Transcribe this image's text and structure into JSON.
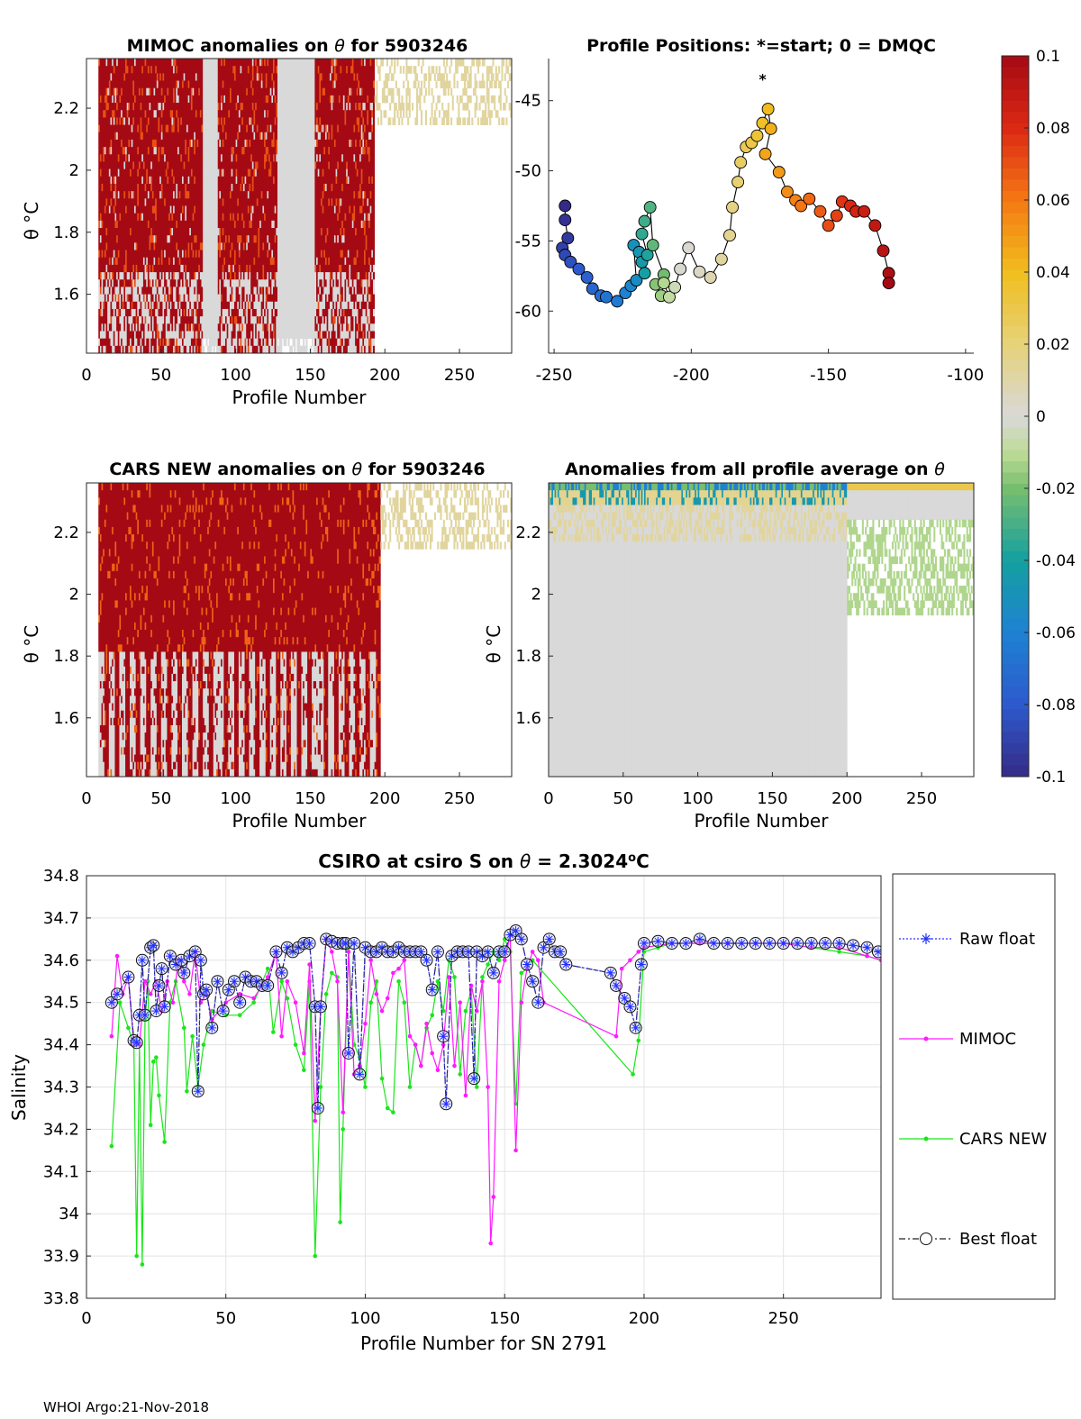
{
  "footer": "WHOI Argo:21-Nov-2018",
  "symbols": {
    "theta": "θ",
    "degC": "°C"
  },
  "panels": {
    "mimoc": {
      "title_pre": "MIMOC anomalies on ",
      "title_post": " for 5903246",
      "xlabel": "Profile Number",
      "ylabel": "θ °C",
      "xticks": [
        0,
        50,
        100,
        150,
        200,
        250
      ],
      "yticks": [
        1.6,
        1.8,
        2.0,
        2.2
      ],
      "xlim": [
        0,
        285
      ],
      "ylim": [
        1.41,
        2.36
      ]
    },
    "positions": {
      "title": "Profile Positions: *=start; 0 = DMQC",
      "xticks": [
        -250,
        -200,
        -150,
        -100
      ],
      "yticks": [
        -45,
        -50,
        -55,
        -60
      ],
      "xlim": [
        -252,
        -97
      ],
      "ylim": [
        -63,
        -42
      ]
    },
    "cars": {
      "title_pre": "CARS NEW anomalies on ",
      "title_post": " for 5903246",
      "xlabel": "Profile Number",
      "ylabel": "θ °C",
      "xticks": [
        0,
        50,
        100,
        150,
        200,
        250
      ],
      "yticks": [
        1.6,
        1.8,
        2.0,
        2.2
      ],
      "xlim": [
        0,
        285
      ],
      "ylim": [
        1.41,
        2.36
      ]
    },
    "avg": {
      "title_pre": "Anomalies from all profile average on ",
      "xlabel": "Profile Number",
      "ylabel": "θ °C",
      "xticks": [
        0,
        50,
        100,
        150,
        200,
        250
      ],
      "yticks": [
        1.6,
        1.8,
        2.0,
        2.2
      ],
      "xlim": [
        0,
        285
      ],
      "ylim": [
        1.41,
        2.36
      ]
    }
  },
  "colorbar": {
    "ticks": [
      "0.1",
      "0.08",
      "0.06",
      "0.04",
      "0.02",
      "0",
      "-0.02",
      "-0.04",
      "-0.06",
      "-0.08",
      "-0.1"
    ],
    "range": [
      -0.1,
      0.1
    ]
  },
  "chart_data": [
    {
      "type": "heatmap",
      "title": "MIMOC anomalies on θ for 5903246",
      "xlabel": "Profile Number",
      "ylabel": "θ °C",
      "xlim": [
        0,
        285
      ],
      "ylim": [
        1.41,
        2.36
      ],
      "data_columns": [
        {
          "x0": 8,
          "x1": 78,
          "value": 0.1
        },
        {
          "x0": 78,
          "x1": 88,
          "value": 0.0
        },
        {
          "x0": 88,
          "x1": 128,
          "value": 0.1
        },
        {
          "x0": 128,
          "x1": 153,
          "value": 0.0
        },
        {
          "x0": 153,
          "x1": 193,
          "value": 0.1
        },
        {
          "x0": 193,
          "x1": 285,
          "value": 0.01
        }
      ]
    },
    {
      "type": "scatter",
      "title": "Profile Positions: *=start; 0 = DMQC",
      "xlim": [
        -252,
        -97
      ],
      "ylim": [
        -63,
        -42
      ],
      "x": [
        -246,
        -246,
        -245,
        -247,
        -246,
        -244,
        -241,
        -238,
        -236,
        -233,
        -231,
        -227,
        -224,
        -222,
        -220,
        -221,
        -219,
        -218,
        -217,
        -216,
        -218,
        -217,
        -215,
        -214,
        -210,
        -213,
        -211,
        -210,
        -208,
        -206,
        -204,
        -201,
        -197,
        -193,
        -189,
        -186,
        -185,
        -183,
        -182,
        -180,
        -178,
        -176,
        -174,
        -172,
        -171,
        -173,
        -168,
        -165,
        -162,
        -160,
        -157,
        -153,
        -150,
        -147,
        -145,
        -142,
        -140,
        -137,
        -133,
        -130,
        -128,
        -128
      ],
      "y": [
        -52.5,
        -53.5,
        -54.8,
        -55.5,
        -56.0,
        -56.5,
        -57.0,
        -57.6,
        -58.4,
        -58.9,
        -59.0,
        -59.3,
        -58.7,
        -58.2,
        -57.8,
        -55.3,
        -55.8,
        -56.5,
        -57.3,
        -56.0,
        -54.5,
        -53.6,
        -52.6,
        -55.3,
        -57.4,
        -58.1,
        -58.9,
        -58.0,
        -59.0,
        -58.3,
        -57.0,
        -55.5,
        -57.2,
        -57.6,
        -56.3,
        -54.6,
        -52.6,
        -50.8,
        -49.4,
        -48.3,
        -48.0,
        -47.5,
        -46.6,
        -45.6,
        -47.0,
        -48.8,
        -50.1,
        -51.5,
        -52.1,
        -52.5,
        -52.0,
        -52.9,
        -53.9,
        -53.2,
        -52.2,
        -52.5,
        -52.9,
        -52.9,
        -53.9,
        -55.7,
        -57.3,
        -58.0
      ],
      "start": {
        "x": -174,
        "y": -43.5
      }
    },
    {
      "type": "heatmap",
      "title": "CARS NEW anomalies on θ for 5903246",
      "xlabel": "Profile Number",
      "ylabel": "θ °C",
      "xlim": [
        0,
        285
      ],
      "ylim": [
        1.41,
        2.36
      ],
      "data_columns": [
        {
          "x0": 8,
          "x1": 88,
          "value": 0.1
        },
        {
          "x0": 88,
          "x1": 155,
          "value": 0.1
        },
        {
          "x0": 155,
          "x1": 197,
          "value": 0.1
        },
        {
          "x0": 197,
          "x1": 285,
          "value": 0.01
        }
      ]
    },
    {
      "type": "heatmap",
      "title": "Anomalies from all profile average on θ",
      "xlabel": "Profile Number",
      "ylabel": "θ °C",
      "xlim": [
        0,
        285
      ],
      "ylim": [
        1.41,
        2.36
      ],
      "data_columns": [
        {
          "x0": 0,
          "x1": 200,
          "value": 0.0
        },
        {
          "x0": 200,
          "x1": 285,
          "value": -0.01
        }
      ]
    },
    {
      "type": "line",
      "title": "CSIRO at csiro S on θ = 2.3024°C",
      "title_pre": "CSIRO at csiro S on ",
      "title_post": " = 2.3024",
      "title_unit": "o",
      "title_unit_tail": "C",
      "xlabel": "Profile Number for SN 2791",
      "ylabel": "Salinity",
      "xlim": [
        0,
        285
      ],
      "ylim": [
        33.8,
        34.8
      ],
      "xticks": [
        0,
        50,
        100,
        150,
        200,
        250
      ],
      "yticks": [
        33.8,
        33.9,
        34.0,
        34.1,
        34.2,
        34.3,
        34.4,
        34.5,
        34.6,
        34.7,
        34.8
      ],
      "legend": [
        "Raw float",
        "MIMOC",
        "CARS NEW",
        "Best float"
      ],
      "series": [
        {
          "name": "Raw float",
          "x": [
            9,
            11,
            15,
            17,
            18,
            19,
            20,
            21,
            23,
            24,
            25,
            26,
            27,
            28,
            30,
            32,
            34,
            35,
            37,
            39,
            40,
            41,
            42,
            43,
            45,
            47,
            49,
            51,
            53,
            55,
            57,
            59,
            61,
            63,
            65,
            68,
            70,
            72,
            74,
            76,
            78,
            80,
            82,
            83,
            84,
            86,
            88,
            90,
            92,
            93,
            94,
            96,
            98,
            100,
            102,
            104,
            106,
            108,
            110,
            112,
            114,
            116,
            118,
            120,
            122,
            124,
            126,
            128,
            129,
            131,
            133,
            135,
            137,
            139,
            140,
            142,
            144,
            146,
            148,
            150,
            152,
            154,
            156,
            158,
            160,
            162,
            164,
            166,
            168,
            170,
            172,
            188,
            190,
            193,
            195,
            197,
            199,
            200,
            205,
            210,
            215,
            220,
            225,
            230,
            235,
            240,
            245,
            250,
            255,
            260,
            265,
            270,
            275,
            280,
            284
          ],
          "y": [
            34.5,
            34.52,
            34.56,
            34.41,
            34.405,
            34.47,
            34.6,
            34.47,
            34.63,
            34.635,
            34.48,
            34.54,
            34.58,
            34.49,
            34.61,
            34.59,
            34.6,
            34.57,
            34.61,
            34.62,
            34.29,
            34.6,
            34.52,
            34.53,
            34.44,
            34.55,
            34.48,
            34.53,
            34.55,
            34.5,
            34.56,
            34.55,
            34.55,
            34.54,
            34.54,
            34.62,
            34.57,
            34.63,
            34.62,
            34.63,
            34.64,
            34.64,
            34.49,
            34.25,
            34.49,
            34.65,
            34.645,
            34.64,
            34.64,
            34.64,
            34.38,
            34.64,
            34.33,
            34.63,
            34.62,
            34.62,
            34.63,
            34.62,
            34.62,
            34.63,
            34.62,
            34.62,
            34.62,
            34.62,
            34.6,
            34.53,
            34.62,
            34.42,
            34.26,
            34.61,
            34.62,
            34.62,
            34.62,
            34.32,
            34.62,
            34.61,
            34.62,
            34.57,
            34.62,
            34.62,
            34.66,
            34.67,
            34.65,
            34.59,
            34.55,
            34.5,
            34.63,
            34.65,
            34.62,
            34.62,
            34.59,
            34.57,
            34.54,
            34.51,
            34.49,
            34.44,
            34.59,
            34.64,
            34.645,
            34.64,
            34.64,
            34.65,
            34.64,
            34.64,
            34.64,
            34.64,
            34.64,
            34.64,
            34.64,
            34.64,
            34.64,
            34.64,
            34.635,
            34.63,
            34.62
          ]
        },
        {
          "name": "MIMOC",
          "x": [
            9,
            11,
            13,
            15,
            17,
            19,
            21,
            23,
            25,
            27,
            29,
            31,
            33,
            35,
            37,
            39,
            41,
            43,
            45,
            50,
            55,
            60,
            65,
            68,
            70,
            72,
            75,
            78,
            80,
            82,
            84,
            86,
            88,
            90,
            92,
            94,
            96,
            98,
            100,
            102,
            104,
            106,
            108,
            110,
            112,
            114,
            116,
            118,
            120,
            122,
            124,
            126,
            128,
            130,
            132,
            134,
            136,
            138,
            140,
            142,
            144,
            145,
            146,
            148,
            150,
            152,
            154,
            156,
            158,
            160,
            162,
            164,
            190,
            192,
            195,
            198,
            200,
            210,
            220,
            230,
            240,
            250,
            260,
            270,
            280,
            285
          ],
          "y": [
            34.42,
            34.61,
            34.52,
            34.56,
            34.4,
            34.4,
            34.55,
            34.52,
            34.55,
            34.48,
            34.55,
            34.5,
            34.6,
            34.55,
            34.52,
            34.62,
            34.5,
            34.52,
            34.46,
            34.5,
            34.52,
            34.51,
            34.56,
            34.62,
            34.42,
            34.55,
            34.5,
            34.38,
            34.59,
            34.22,
            34.49,
            34.65,
            34.62,
            34.55,
            34.24,
            34.62,
            34.33,
            34.35,
            34.45,
            34.6,
            34.52,
            34.48,
            34.51,
            34.57,
            34.58,
            34.6,
            34.42,
            34.4,
            34.35,
            34.45,
            34.38,
            34.34,
            34.4,
            34.56,
            34.35,
            34.5,
            34.28,
            34.54,
            34.48,
            34.55,
            34.3,
            33.93,
            34.04,
            34.55,
            34.6,
            34.66,
            34.15,
            34.5,
            34.58,
            34.62,
            34.6,
            34.5,
            34.42,
            34.58,
            34.6,
            34.62,
            34.63,
            34.64,
            34.64,
            34.64,
            34.64,
            34.64,
            34.63,
            34.63,
            34.61,
            34.6
          ]
        },
        {
          "name": "CARS NEW",
          "x": [
            9,
            12,
            15,
            17,
            18,
            19,
            20,
            21,
            22,
            23,
            24,
            25,
            26,
            28,
            30,
            32,
            35,
            36,
            38,
            40,
            42,
            45,
            50,
            55,
            60,
            65,
            67,
            70,
            72,
            75,
            78,
            80,
            82,
            84,
            86,
            88,
            90,
            91,
            92,
            94,
            96,
            98,
            100,
            102,
            104,
            106,
            108,
            110,
            112,
            114,
            116,
            118,
            120,
            122,
            124,
            126,
            128,
            130,
            132,
            134,
            136,
            138,
            140,
            142,
            144,
            146,
            148,
            150,
            152,
            154,
            156,
            158,
            160,
            196,
            198,
            200,
            205,
            210,
            220,
            230,
            240,
            250,
            260,
            270,
            280,
            285
          ],
          "y": [
            34.16,
            34.5,
            34.44,
            34.4,
            33.9,
            34.4,
            33.88,
            34.46,
            34.55,
            34.21,
            34.36,
            34.37,
            34.28,
            34.17,
            34.5,
            34.55,
            34.44,
            34.29,
            34.42,
            34.3,
            34.4,
            34.48,
            34.47,
            34.47,
            34.5,
            34.58,
            34.43,
            34.55,
            34.51,
            34.4,
            34.34,
            34.55,
            33.9,
            34.3,
            34.52,
            34.57,
            34.56,
            33.98,
            34.2,
            34.63,
            34.4,
            34.37,
            34.3,
            34.5,
            34.55,
            34.32,
            34.25,
            34.24,
            34.55,
            34.5,
            34.3,
            34.4,
            34.35,
            34.44,
            34.47,
            34.55,
            34.48,
            34.6,
            34.56,
            34.33,
            34.48,
            34.53,
            34.3,
            34.56,
            34.59,
            34.62,
            34.6,
            34.65,
            34.62,
            34.26,
            34.57,
            34.58,
            34.6,
            34.33,
            34.41,
            34.62,
            34.63,
            34.64,
            34.64,
            34.64,
            34.64,
            34.64,
            34.63,
            34.62,
            34.61,
            34.6
          ]
        },
        {
          "name": "Best float",
          "same_as": "Raw float"
        }
      ]
    }
  ]
}
